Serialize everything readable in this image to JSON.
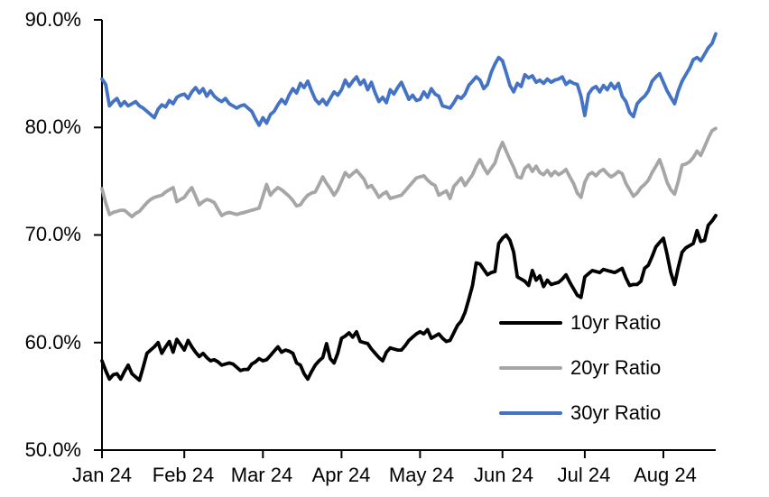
{
  "chart_data": {
    "type": "line",
    "title": "",
    "xlabel": "",
    "ylabel": "",
    "grid": false,
    "legend_position": "inside-lower-right",
    "ylim": [
      50,
      90
    ],
    "y_tick_values": [
      90,
      80,
      70,
      60,
      50
    ],
    "y_tick_labels": [
      "90.0%",
      "80.0%",
      "70.0%",
      "60.0%",
      "50.0%"
    ],
    "x_tick_labels": [
      "Jan 24",
      "Feb 24",
      "Mar 24",
      "Apr 24",
      "May 24",
      "Jun 24",
      "Jul 24",
      "Aug 24"
    ],
    "x_tick_day_indices": [
      0,
      22,
      43,
      64,
      85,
      107,
      129,
      150
    ],
    "axis_color": "#000000",
    "series": [
      {
        "name": "10yr Ratio",
        "color": "#000000",
        "values": [
          58.3,
          57.4,
          56.6,
          57.0,
          57.1,
          56.6,
          57.3,
          57.9,
          57.1,
          56.8,
          56.5,
          57.7,
          59.0,
          59.3,
          59.6,
          60.0,
          59.0,
          59.6,
          60.1,
          59.1,
          60.3,
          59.8,
          59.3,
          60.2,
          59.6,
          59.1,
          58.7,
          59.0,
          58.6,
          58.3,
          58.4,
          58.2,
          57.9,
          58.0,
          58.1,
          58.0,
          57.7,
          57.4,
          57.5,
          57.5,
          58.0,
          58.2,
          58.5,
          58.3,
          58.4,
          58.8,
          59.2,
          59.6,
          59.1,
          59.3,
          59.2,
          59.0,
          58.1,
          57.9,
          57.1,
          56.6,
          57.3,
          57.9,
          58.3,
          58.6,
          59.9,
          58.5,
          58.1,
          59.0,
          60.4,
          60.6,
          60.9,
          60.5,
          61.0,
          60.1,
          60.0,
          59.9,
          59.4,
          59.0,
          58.6,
          58.3,
          59.1,
          59.5,
          59.4,
          59.3,
          59.3,
          59.7,
          60.2,
          60.5,
          60.8,
          61.0,
          60.8,
          61.2,
          60.4,
          60.6,
          60.8,
          60.4,
          60.1,
          60.2,
          60.9,
          61.6,
          62.0,
          62.8,
          64.0,
          65.3,
          67.4,
          67.3,
          66.8,
          66.3,
          66.5,
          66.6,
          69.2,
          69.7,
          70.0,
          69.5,
          68.4,
          66.1,
          65.9,
          65.7,
          65.3,
          66.7,
          65.8,
          66.2,
          65.2,
          65.8,
          65.4,
          65.5,
          65.6,
          65.9,
          66.3,
          65.6,
          65.0,
          64.4,
          64.2,
          66.1,
          66.4,
          66.7,
          66.6,
          66.5,
          66.8,
          66.7,
          66.6,
          66.5,
          66.7,
          66.9,
          66.0,
          65.3,
          65.4,
          65.4,
          65.7,
          66.9,
          67.2,
          68.0,
          68.9,
          69.3,
          69.7,
          68.2,
          66.5,
          65.4,
          67.0,
          68.4,
          68.8,
          69.0,
          69.2,
          70.4,
          69.4,
          69.5,
          70.9,
          71.3,
          71.8
        ]
      },
      {
        "name": "20yr Ratio",
        "color": "#A6A6A6",
        "values": [
          74.3,
          73.0,
          71.9,
          72.1,
          72.2,
          72.3,
          72.3,
          72.0,
          71.7,
          72.0,
          72.2,
          72.6,
          73.0,
          73.3,
          73.5,
          73.6,
          73.7,
          74.0,
          74.2,
          74.4,
          73.1,
          73.3,
          73.5,
          74.0,
          74.4,
          73.6,
          72.8,
          73.1,
          73.3,
          73.2,
          73.0,
          72.4,
          71.8,
          72.0,
          72.1,
          72.0,
          71.9,
          72.0,
          72.1,
          72.2,
          72.3,
          72.4,
          72.5,
          73.6,
          74.7,
          73.7,
          74.1,
          74.4,
          74.2,
          73.9,
          73.6,
          73.2,
          72.7,
          72.8,
          73.3,
          73.7,
          73.9,
          74.0,
          74.7,
          75.4,
          74.8,
          74.3,
          73.7,
          74.2,
          75.0,
          75.8,
          75.4,
          75.7,
          76.0,
          75.6,
          75.2,
          74.4,
          74.6,
          74.1,
          73.5,
          73.8,
          74.0,
          73.4,
          73.5,
          73.6,
          73.7,
          74.1,
          74.5,
          74.9,
          75.3,
          75.4,
          75.5,
          75.1,
          74.8,
          74.6,
          73.7,
          73.9,
          74.1,
          73.4,
          74.5,
          74.9,
          75.3,
          74.6,
          75.1,
          75.6,
          76.4,
          77.0,
          76.3,
          75.7,
          76.2,
          76.7,
          77.8,
          78.6,
          77.8,
          77.0,
          76.3,
          75.4,
          75.3,
          76.2,
          76.5,
          75.9,
          76.4,
          75.8,
          75.6,
          76.0,
          75.5,
          75.9,
          75.6,
          75.8,
          76.1,
          75.4,
          74.8,
          73.9,
          73.5,
          74.9,
          75.6,
          75.8,
          75.5,
          75.9,
          76.1,
          75.7,
          75.4,
          75.6,
          75.9,
          75.7,
          74.8,
          74.2,
          73.6,
          73.9,
          74.4,
          74.7,
          75.1,
          75.8,
          76.4,
          77.0,
          76.0,
          74.9,
          74.2,
          73.8,
          75.0,
          76.5,
          76.6,
          76.8,
          77.2,
          77.8,
          77.4,
          78.2,
          79.0,
          79.7,
          79.9
        ]
      },
      {
        "name": "30yr Ratio",
        "color": "#4472C4",
        "values": [
          84.5,
          84.0,
          82.0,
          82.4,
          82.7,
          82.0,
          82.4,
          82.0,
          82.2,
          82.4,
          82.0,
          81.8,
          81.5,
          81.2,
          80.9,
          81.7,
          82.1,
          81.9,
          82.5,
          82.2,
          82.8,
          83.0,
          83.1,
          82.7,
          83.3,
          83.7,
          83.2,
          83.6,
          82.9,
          83.4,
          82.9,
          82.6,
          82.4,
          82.7,
          82.2,
          82.0,
          81.8,
          82.0,
          82.1,
          81.8,
          81.5,
          80.8,
          80.2,
          80.9,
          80.4,
          81.2,
          81.5,
          82.1,
          82.6,
          82.2,
          83.0,
          83.6,
          83.2,
          84.1,
          83.7,
          84.3,
          83.4,
          82.6,
          82.2,
          82.6,
          82.1,
          82.7,
          83.3,
          83.0,
          83.5,
          84.4,
          83.8,
          84.3,
          84.7,
          84.0,
          84.4,
          83.5,
          84.2,
          83.2,
          82.4,
          82.8,
          82.3,
          83.5,
          83.1,
          83.7,
          84.2,
          83.4,
          82.6,
          83.0,
          82.5,
          82.6,
          83.3,
          82.8,
          83.6,
          83.1,
          82.9,
          82.0,
          81.9,
          81.8,
          82.3,
          82.9,
          82.7,
          83.1,
          83.9,
          84.3,
          84.7,
          84.4,
          83.6,
          84.0,
          85.1,
          85.9,
          86.5,
          86.2,
          85.1,
          83.9,
          83.3,
          84.1,
          83.8,
          84.9,
          84.6,
          84.8,
          84.2,
          84.4,
          84.1,
          84.5,
          84.2,
          84.4,
          84.5,
          84.7,
          84.0,
          84.3,
          84.1,
          84.0,
          82.9,
          81.1,
          83.1,
          83.6,
          83.8,
          83.3,
          83.9,
          83.5,
          84.1,
          83.6,
          84.1,
          82.9,
          82.4,
          81.4,
          81.0,
          82.2,
          82.6,
          82.9,
          83.4,
          84.3,
          84.7,
          85.0,
          84.2,
          83.4,
          82.8,
          82.2,
          83.4,
          84.3,
          84.9,
          85.5,
          86.3,
          86.5,
          86.2,
          86.8,
          87.4,
          87.8,
          88.7
        ]
      }
    ]
  }
}
